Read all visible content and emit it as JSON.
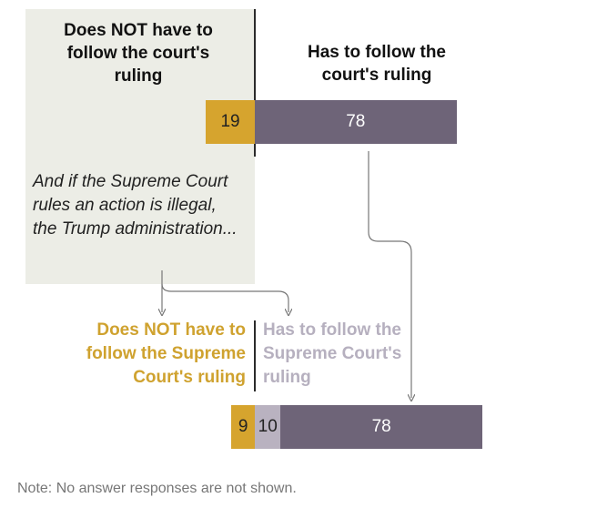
{
  "chart_data": {
    "type": "bar",
    "orientation": "horizontal-diverging",
    "colors": {
      "not_follow": "#d6a42e",
      "follow": "#6e6478",
      "follow_light": "#b9b2c0",
      "panel": "#ecede6"
    },
    "question1": {
      "left_label": "Does NOT have to follow the court's ruling",
      "right_label": "Has to follow the court's ruling",
      "not_follow": 19,
      "follow": 78
    },
    "followup_prompt": "And if the Supreme Court rules an action is illegal, the Trump administration...",
    "question2": {
      "left_label": "Does NOT have to follow the Supreme Court's ruling",
      "right_label": "Has to follow the Supreme Court's ruling",
      "not_follow": 9,
      "follow_from_not": 10,
      "follow": 78
    },
    "note": "Note: No answer responses are not shown."
  }
}
